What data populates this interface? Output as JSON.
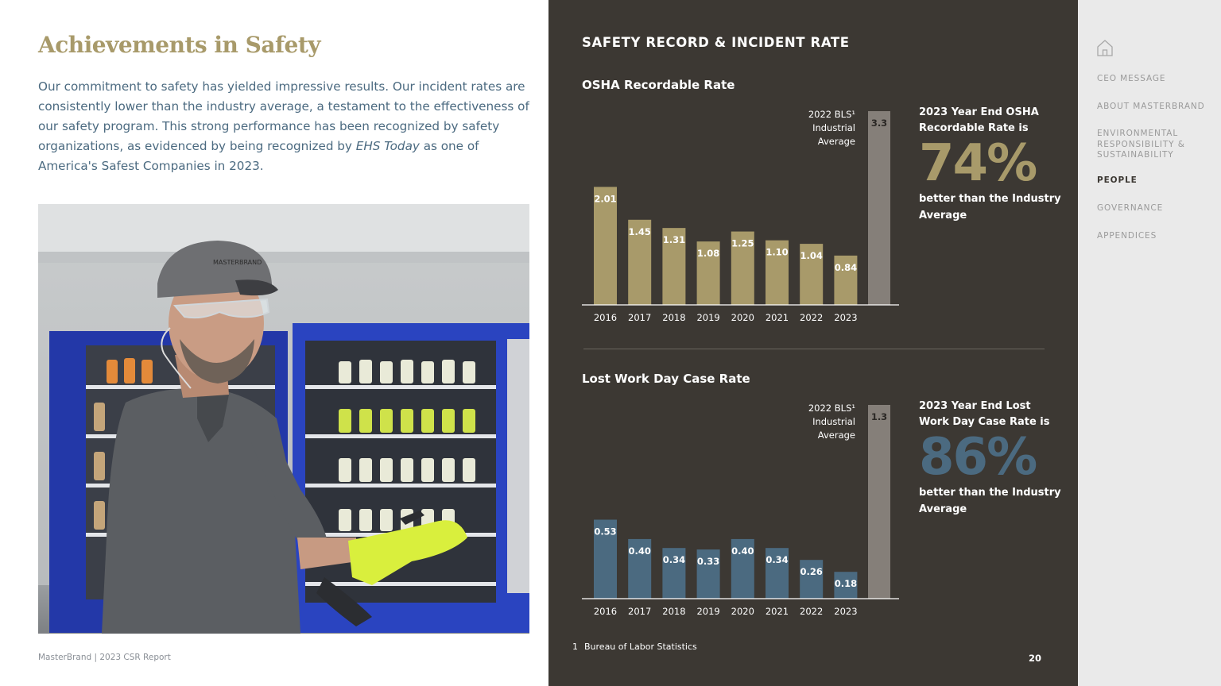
{
  "page": {
    "title": "Achievements in Safety",
    "intro_part1": "Our commitment to safety has yielded impressive results. Our incident rates are consistently lower than the industry average, a testament to the effectiveness of our safety program.  This strong performance has been recognized by safety organizations, as evidenced by being recognized by ",
    "intro_italic": "EHS Today",
    "intro_part2": " as one of America's Safest Companies in 2023.",
    "footer": "MasterBrand  |  2023 CSR Report",
    "page_number": "20"
  },
  "panel": {
    "section_title": "SAFETY RECORD & INCIDENT RATE",
    "footnote_number": "1",
    "footnote_text": "Bureau of Labor Statistics"
  },
  "chart_data": [
    {
      "type": "bar",
      "title": "OSHA  Recordable Rate",
      "categories": [
        "2016",
        "2017",
        "2018",
        "2019",
        "2020",
        "2021",
        "2022",
        "2023"
      ],
      "values": [
        2.01,
        1.45,
        1.31,
        1.08,
        1.25,
        1.1,
        1.04,
        0.84
      ],
      "value_labels": [
        "2.01",
        "1.45",
        "1.31",
        "1.08",
        "1.25",
        "1.10",
        "1.04",
        "0.84"
      ],
      "benchmark": {
        "label_line1": "2022 BLS¹",
        "label_line2": "Industrial",
        "label_line3": "Average",
        "value": 3.3,
        "value_label": "3.3"
      },
      "ylim": [
        0,
        3.3
      ],
      "bar_color": "#a89a6a",
      "benchmark_color": "#857f79",
      "callout": {
        "lead": "2023 Year End OSHA Recordable Rate is",
        "big": "74%",
        "tail": "better than the Industry Average",
        "big_color": "#a89a6a"
      }
    },
    {
      "type": "bar",
      "title": "Lost Work  Day Case Rate",
      "categories": [
        "2016",
        "2017",
        "2018",
        "2019",
        "2020",
        "2021",
        "2022",
        "2023"
      ],
      "values": [
        0.53,
        0.4,
        0.34,
        0.33,
        0.4,
        0.34,
        0.26,
        0.18
      ],
      "value_labels": [
        "0.53",
        "0.40",
        "0.34",
        "0.33",
        "0.40",
        "0.34",
        "0.26",
        "0.18"
      ],
      "benchmark": {
        "label_line1": "2022 BLS¹",
        "label_line2": "Industrial",
        "label_line3": "Average",
        "value": 1.3,
        "value_label": "1.3"
      },
      "ylim": [
        0,
        1.3
      ],
      "bar_color": "#4b6a80",
      "benchmark_color": "#857f79",
      "callout": {
        "lead": "2023 Year End Lost Work Day Case Rate is",
        "big": "86%",
        "tail": "better than the Industry Average",
        "big_color": "#4b6a80"
      }
    }
  ],
  "nav": {
    "items": [
      {
        "label": "CEO MESSAGE"
      },
      {
        "label": "ABOUT MASTERBRAND"
      },
      {
        "label": "ENVIRONMENTAL RESPONSIBILITY & SUSTAINABILITY"
      },
      {
        "label": "PEOPLE"
      },
      {
        "label": "GOVERNANCE"
      },
      {
        "label": "APPENDICES"
      }
    ],
    "active_index": 3,
    "home_icon": "home-icon"
  },
  "photo": {
    "cap_text": "MASTERBRAND"
  }
}
